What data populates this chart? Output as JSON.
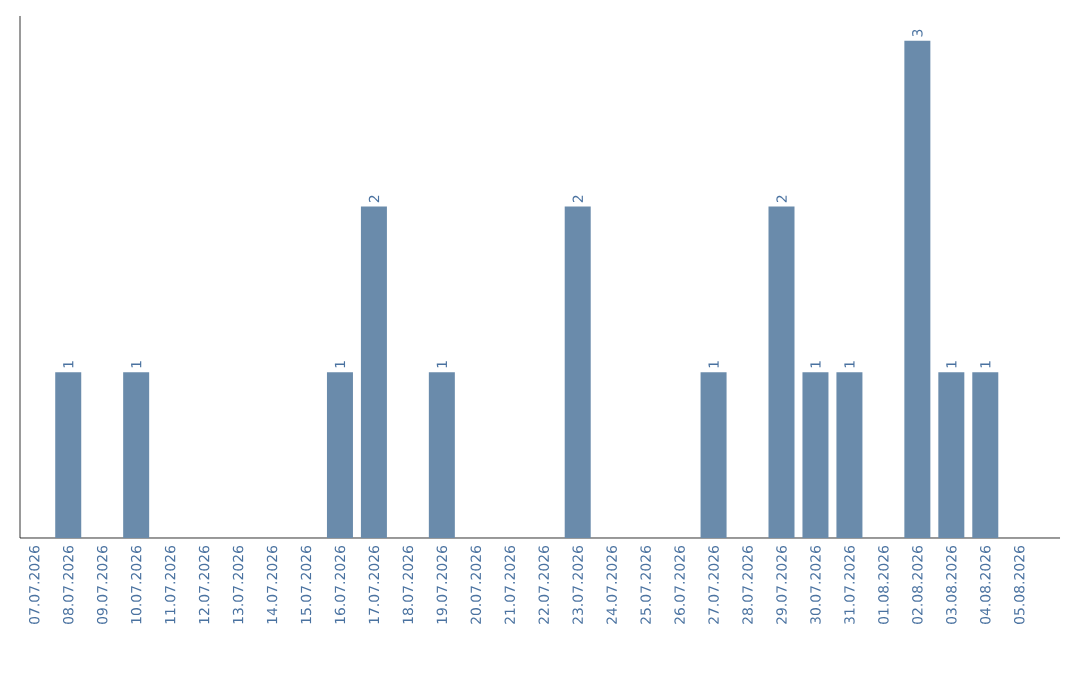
{
  "chart_data": {
    "type": "bar",
    "categories": [
      "07.07.2026",
      "08.07.2026",
      "09.07.2026",
      "10.07.2026",
      "11.07.2026",
      "12.07.2026",
      "13.07.2026",
      "14.07.2026",
      "15.07.2026",
      "16.07.2026",
      "17.07.2026",
      "18.07.2026",
      "19.07.2026",
      "20.07.2026",
      "21.07.2026",
      "22.07.2026",
      "23.07.2026",
      "24.07.2026",
      "25.07.2026",
      "26.07.2026",
      "27.07.2026",
      "28.07.2026",
      "29.07.2026",
      "30.07.2026",
      "31.07.2026",
      "01.08.2026",
      "02.08.2026",
      "03.08.2026",
      "04.08.2026",
      "05.08.2026"
    ],
    "values": [
      0,
      1,
      0,
      1,
      0,
      0,
      0,
      0,
      0,
      1,
      2,
      0,
      1,
      0,
      0,
      0,
      2,
      0,
      0,
      0,
      1,
      0,
      2,
      1,
      1,
      0,
      3,
      1,
      1,
      0
    ],
    "value_labels": [
      null,
      "1",
      null,
      "1",
      null,
      null,
      null,
      null,
      null,
      "1",
      "2",
      null,
      "1",
      null,
      null,
      null,
      "2",
      null,
      null,
      null,
      "1",
      null,
      "2",
      "1",
      "1",
      null,
      "3",
      "1",
      "1",
      null
    ],
    "color": "#6a8bab",
    "ylim": [
      0,
      3.15
    ]
  }
}
